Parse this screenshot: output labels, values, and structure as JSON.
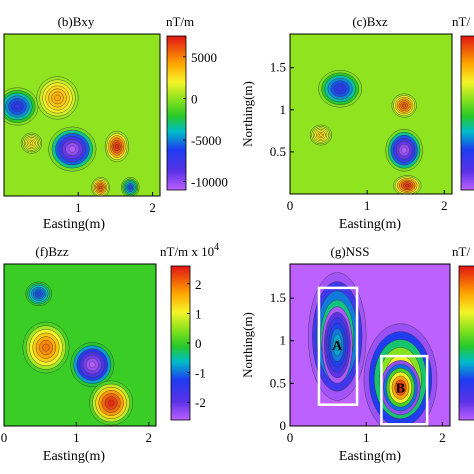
{
  "chart_data": [
    {
      "type": "heatmap",
      "title": "(b)Bxy",
      "xlabel": "Easting(m)",
      "ylabel": "",
      "xlim": [
        0,
        2.1
      ],
      "ylim": [
        0,
        1.9
      ],
      "xticks": [
        "1",
        "2"
      ],
      "yticks": [],
      "colorbar": {
        "unit": "nT/m",
        "ticks": [
          "5000",
          "0",
          "-5000",
          "-10000"
        ],
        "tick_values": [
          5000,
          0,
          -5000,
          -10000
        ],
        "range": [
          -11000,
          7500
        ]
      },
      "background_value": 0,
      "anomalies": [
        {
          "x": 0.18,
          "y": 1.05,
          "value": -7000,
          "rx": 0.28,
          "ry": 0.22
        },
        {
          "x": 0.72,
          "y": 1.15,
          "value": 4000,
          "rx": 0.28,
          "ry": 0.25
        },
        {
          "x": 0.37,
          "y": 0.62,
          "value": 2500,
          "rx": 0.14,
          "ry": 0.12
        },
        {
          "x": 0.92,
          "y": 0.55,
          "value": -11000,
          "rx": 0.32,
          "ry": 0.26
        },
        {
          "x": 1.52,
          "y": 0.58,
          "value": 7000,
          "rx": 0.16,
          "ry": 0.18
        },
        {
          "x": 1.3,
          "y": 0.1,
          "value": 6000,
          "rx": 0.12,
          "ry": 0.12
        },
        {
          "x": 1.7,
          "y": 0.1,
          "value": -6000,
          "rx": 0.12,
          "ry": 0.12
        }
      ]
    },
    {
      "type": "heatmap",
      "title": "(c)Bxz",
      "xlabel": "Easting(m)",
      "ylabel": "Northing(m)",
      "xlim": [
        0,
        2.1
      ],
      "ylim": [
        0,
        1.9
      ],
      "xticks": [
        "0",
        "1",
        "2"
      ],
      "yticks": [
        "0.5",
        "1",
        "1.5"
      ],
      "colorbar": {
        "unit": "nT/",
        "ticks": []
      },
      "background_value": 0,
      "anomalies": [
        {
          "x": 0.65,
          "y": 1.25,
          "value": -7000,
          "rx": 0.28,
          "ry": 0.22
        },
        {
          "x": 0.4,
          "y": 0.7,
          "value": 3000,
          "rx": 0.14,
          "ry": 0.12
        },
        {
          "x": 1.48,
          "y": 1.05,
          "value": 6000,
          "rx": 0.16,
          "ry": 0.14
        },
        {
          "x": 1.48,
          "y": 0.52,
          "value": -11000,
          "rx": 0.24,
          "ry": 0.25
        },
        {
          "x": 1.52,
          "y": 0.1,
          "value": 7000,
          "rx": 0.18,
          "ry": 0.12
        }
      ]
    },
    {
      "type": "heatmap",
      "title": "(f)Bzz",
      "xlabel": "Easting(m)",
      "ylabel": "",
      "xlim": [
        0,
        2.1
      ],
      "ylim": [
        0,
        1.9
      ],
      "xticks": [
        "0",
        "1",
        "2"
      ],
      "yticks": [],
      "colorbar": {
        "unit": "nT/m x 10",
        "exponent": "4",
        "ticks": [
          "2",
          "1",
          "0",
          "-1",
          "-2"
        ],
        "tick_values": [
          2,
          1,
          0,
          -1,
          -2
        ],
        "range": [
          -2.6,
          2.6
        ]
      },
      "background_value": 0,
      "anomalies": [
        {
          "x": 0.48,
          "y": 1.55,
          "value": -1.2,
          "rx": 0.18,
          "ry": 0.14
        },
        {
          "x": 0.58,
          "y": 0.92,
          "value": 2.0,
          "rx": 0.32,
          "ry": 0.3
        },
        {
          "x": 1.22,
          "y": 0.72,
          "value": -2.6,
          "rx": 0.3,
          "ry": 0.26
        },
        {
          "x": 1.48,
          "y": 0.27,
          "value": 2.5,
          "rx": 0.3,
          "ry": 0.26
        }
      ]
    },
    {
      "type": "heatmap",
      "title": "(g)NSS",
      "xlabel": "Easting(m)",
      "ylabel": "Northing(m)",
      "xlim": [
        0,
        2.1
      ],
      "ylim": [
        0,
        1.9
      ],
      "xticks": [
        "0",
        "1",
        "2"
      ],
      "yticks": [
        "0",
        "0.5",
        "1",
        "1.5"
      ],
      "colorbar": {
        "unit": "nT/",
        "ticks": []
      },
      "background_value": 0,
      "anomalies": [
        {
          "x": 0.62,
          "y": 1.05,
          "value": 0.3,
          "rx": 0.38,
          "ry": 0.75
        },
        {
          "x": 0.62,
          "y": 0.95,
          "value": 0.15,
          "rx": 0.2,
          "ry": 0.45
        },
        {
          "x": 1.45,
          "y": 0.55,
          "value": 0.45,
          "rx": 0.48,
          "ry": 0.65
        },
        {
          "x": 1.45,
          "y": 0.45,
          "value": 0.55,
          "rx": 0.26,
          "ry": 0.32
        }
      ],
      "annotations": [
        {
          "label": "A",
          "x": 0.62,
          "y": 0.95,
          "box": [
            0.38,
            0.25,
            0.88,
            1.62
          ]
        },
        {
          "label": "B",
          "x": 1.45,
          "y": 0.45,
          "box": [
            1.2,
            0.02,
            1.8,
            0.82
          ]
        }
      ]
    }
  ]
}
